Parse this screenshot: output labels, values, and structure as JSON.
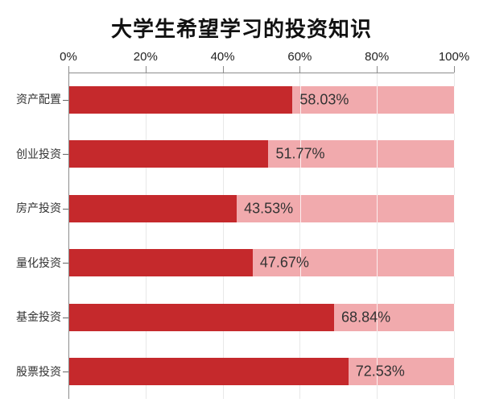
{
  "title": "大学生希望学习的投资知识",
  "chart_data": {
    "type": "bar",
    "orientation": "horizontal",
    "title": "大学生希望学习的投资知识",
    "categories": [
      "资产配置",
      "创业投资",
      "房产投资",
      "量化投资",
      "基金投资",
      "股票投资"
    ],
    "values": [
      58.03,
      51.77,
      43.53,
      47.67,
      68.84,
      72.53
    ],
    "value_labels": [
      "58.03%",
      "51.77%",
      "43.53%",
      "47.67%",
      "68.84%",
      "72.53%"
    ],
    "x_tick_labels": [
      "0%",
      "20%",
      "40%",
      "60%",
      "80%",
      "100%"
    ],
    "xlim": [
      0,
      100
    ],
    "xlabel": "",
    "ylabel": "",
    "legend": "none",
    "grid": true,
    "colors": {
      "bar": "#c5292c",
      "track": "#f1aaad",
      "gridline": "#e8e8e8",
      "axis": "#8c8c8c",
      "tick_text": "#222222",
      "category_text": "#333333",
      "value_text": "#333333",
      "title_text": "#111111",
      "background": "#ffffff"
    }
  }
}
